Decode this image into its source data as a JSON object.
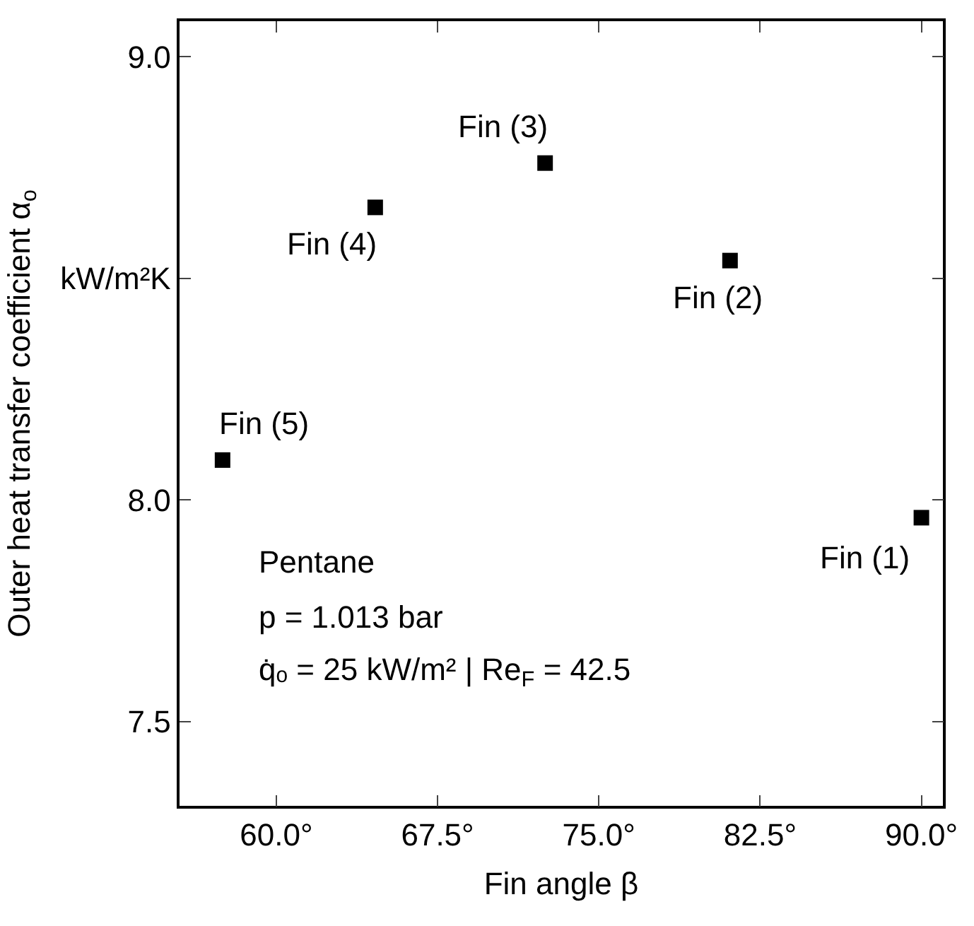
{
  "chart_data": {
    "type": "scatter",
    "xlabel": "Fin angle β",
    "ylabel": "Outer heat transfer coefficient α$_{o}$",
    "x": [
      90,
      81.1,
      72.5,
      64.6,
      57.5
    ],
    "series": [
      {
        "color": "#000000",
        "values": [
          7.96,
          8.54,
          8.76,
          8.66,
          8.09
        ]
      }
    ],
    "marker": "square",
    "xlim": [
      55.5,
      91
    ],
    "ylim": [
      7.31,
      9.08
    ],
    "xticks": [
      {
        "value": 60,
        "label": "60.0°"
      },
      {
        "value": 67.5,
        "label": "67.5°"
      },
      {
        "value": 75,
        "label": "75.0°"
      },
      {
        "value": 82.5,
        "label": "82.5°"
      },
      {
        "value": 90,
        "label": "90.0°"
      }
    ],
    "yticks": [
      {
        "value": 7.5,
        "label": "7.5"
      },
      {
        "value": 8,
        "label": "8.0"
      },
      {
        "value": 8.5,
        "label": "kW/m²K"
      },
      {
        "value": 9,
        "label": "9.0"
      }
    ],
    "annotations": [
      {
        "text": "Fin (1)",
        "x": 90,
        "y": 7.96
      },
      {
        "text": "Fin (2)",
        "x": 81.1,
        "y": 8.54
      },
      {
        "text": "Fin (3)",
        "x": 72.5,
        "y": 8.76
      },
      {
        "text": "Fin (4)",
        "x": 64.6,
        "y": 8.66
      },
      {
        "text": "Fin (5)",
        "x": 57.5,
        "y": 8.09
      },
      "Pentane",
      "p = 1.013 bar",
      "q̇ₒ = 25 kW/m² | Re$_{F}$ = 42.5"
    ]
  }
}
